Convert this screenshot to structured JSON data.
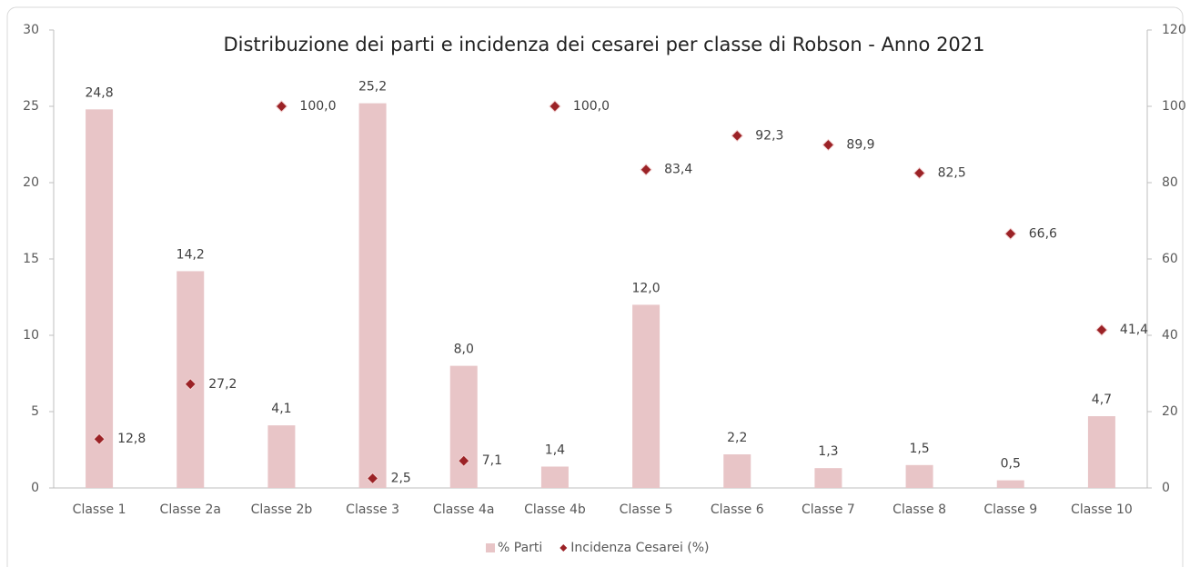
{
  "chart_data": {
    "type": "bar",
    "title": "Distribuzione dei parti e incidenza dei cesarei per classe di Robson - Anno 2021",
    "categories": [
      "Classe 1",
      "Classe 2a",
      "Classe 2b",
      "Classe 3",
      "Classe 4a",
      "Classe 4b",
      "Classe 5",
      "Classe 6",
      "Classe 7",
      "Classe 8",
      "Classe 9",
      "Classe 10"
    ],
    "series": [
      {
        "name": "% Parti",
        "type": "bar",
        "color": "#e8c5c7",
        "values": [
          24.8,
          14.2,
          4.1,
          25.2,
          8.0,
          1.4,
          12.0,
          2.2,
          1.3,
          1.5,
          0.5,
          4.7
        ],
        "value_labels": [
          "24,8",
          "14,2",
          "4,1",
          "25,2",
          "8,0",
          "1,4",
          "12,0",
          "2,2",
          "1,3",
          "1,5",
          "0,5",
          "4,7"
        ]
      },
      {
        "name": "Incidenza Cesarei (%)",
        "type": "scatter",
        "axis": "y2",
        "color": "#9b2226",
        "values": [
          12.8,
          27.2,
          100.0,
          2.5,
          7.1,
          100.0,
          83.4,
          92.3,
          89.9,
          82.5,
          66.6,
          41.4
        ],
        "value_labels": [
          "12,8",
          "27,2",
          "100,0",
          "2,5",
          "7,1",
          "100,0",
          "83,4",
          "92,3",
          "89,9",
          "82,5",
          "66,6",
          "41,4"
        ]
      }
    ],
    "ylim": [
      0,
      30
    ],
    "yticks": [
      0,
      5,
      10,
      15,
      20,
      25,
      30
    ],
    "y2lim": [
      0,
      120
    ],
    "y2ticks": [
      0,
      20,
      40,
      60,
      80,
      100,
      120
    ],
    "legend": "bottom"
  }
}
